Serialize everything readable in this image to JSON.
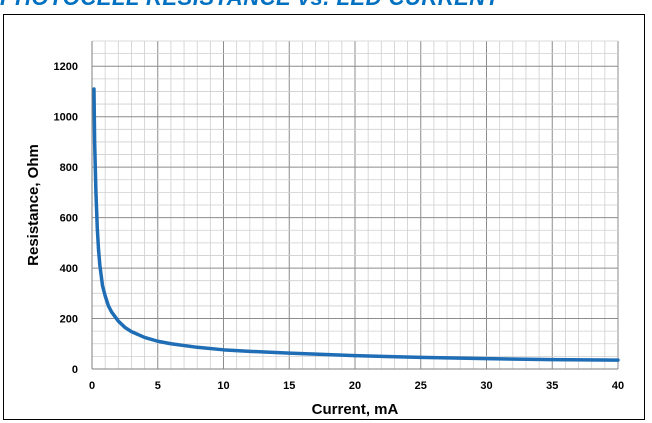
{
  "chart_data": {
    "type": "line",
    "title": "PHOTOCELL RESISTANCE vs. LED CURRENT",
    "xlabel": "Current, mA",
    "ylabel": "Resistance, Ohm",
    "xlim": [
      0,
      40
    ],
    "ylim": [
      0,
      1300
    ],
    "xticks": [
      0,
      5,
      10,
      15,
      20,
      25,
      30,
      35,
      40
    ],
    "yticks": [
      0,
      200,
      400,
      600,
      800,
      1000,
      1200
    ],
    "grid": true,
    "line_color": "#1f6eb5",
    "series": [
      {
        "x": [
          0.15,
          0.2,
          0.3,
          0.4,
          0.5,
          0.6,
          0.8,
          1.0,
          1.25,
          1.5,
          2,
          2.5,
          3,
          4,
          5,
          6,
          8,
          10,
          12,
          15,
          18,
          20,
          25,
          30,
          35,
          40
        ],
        "values": [
          1110,
          900,
          700,
          560,
          470,
          410,
          330,
          290,
          250,
          225,
          190,
          165,
          148,
          125,
          110,
          100,
          86,
          76,
          70,
          63,
          57,
          53,
          46,
          41,
          37,
          35
        ]
      }
    ]
  }
}
